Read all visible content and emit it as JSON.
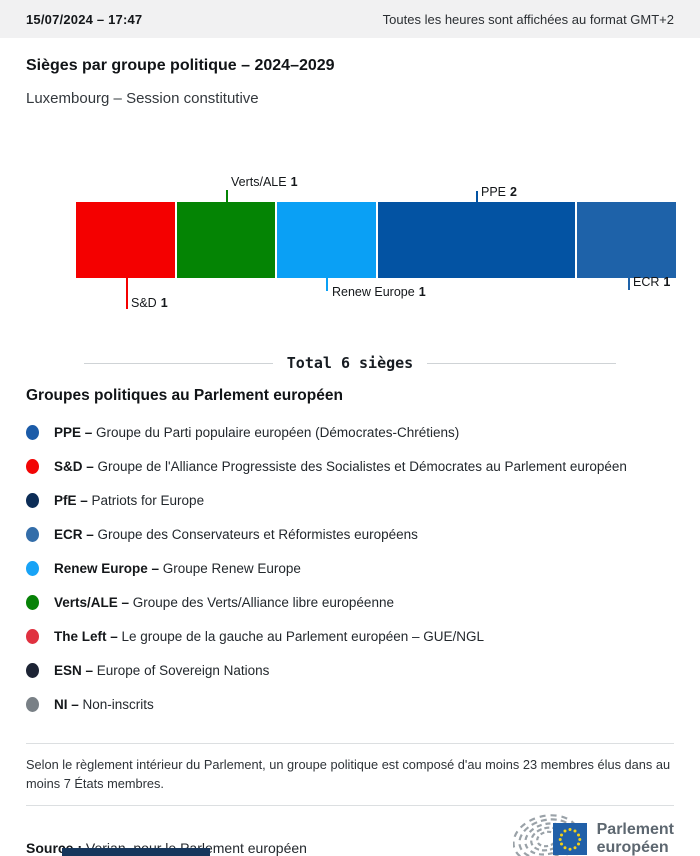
{
  "header": {
    "datetime": "15/07/2024 – 17:47",
    "timezone_notice": "Toutes les heures sont affichées au format GMT+2"
  },
  "title": "Sièges par groupe politique – 2024–2029",
  "subtitle": "Luxembourg – Session constitutive",
  "chart_data": {
    "type": "bar",
    "variant": "horizontal-stacked",
    "title": "Sièges par groupe politique – 2024–2029",
    "total_seats": 6,
    "total_label": "Total 6 sièges",
    "segments": [
      {
        "name": "S&D",
        "seats": 1,
        "color": "#f40000",
        "callout": "below"
      },
      {
        "name": "Verts/ALE",
        "seats": 1,
        "color": "#048404",
        "callout": "above"
      },
      {
        "name": "Renew Europe",
        "seats": 1,
        "color": "#0aa0f5",
        "callout": "below"
      },
      {
        "name": "PPE",
        "seats": 2,
        "color": "#0353a3",
        "callout": "above"
      },
      {
        "name": "ECR",
        "seats": 1,
        "color": "#1e62a9",
        "callout": "below"
      }
    ]
  },
  "legend": {
    "heading": "Groupes politiques au Parlement européen",
    "items": [
      {
        "label": "PPE –",
        "desc": "Groupe du Parti populaire européen (Démocrates-Chrétiens)",
        "color": "#1b5ba8"
      },
      {
        "label": "S&D –",
        "desc": "Groupe de l'Alliance Progressiste des Socialistes et Démocrates au Parlement européen",
        "color": "#f20505"
      },
      {
        "label": "PfE –",
        "desc": "Patriots for Europe",
        "color": "#0c2d57"
      },
      {
        "label": "ECR –",
        "desc": "Groupe des Conservateurs et Réformistes européens",
        "color": "#336da9"
      },
      {
        "label": "Renew Europe –",
        "desc": "Groupe Renew Europe",
        "color": "#18a3f6"
      },
      {
        "label": "Verts/ALE –",
        "desc": "Groupe des Verts/Alliance libre européenne",
        "color": "#078207"
      },
      {
        "label": "The Left –",
        "desc": "Le groupe de la gauche au Parlement européen – GUE/NGL",
        "color": "#e03140"
      },
      {
        "label": "ESN –",
        "desc": "Europe of Sovereign Nations",
        "color": "#1d2435"
      },
      {
        "label": "NI –",
        "desc": "Non-inscrits",
        "color": "#798086"
      }
    ]
  },
  "footnote": "Selon le règlement intérieur du Parlement, un groupe politique est composé d'au moins 23 membres élus dans au moins 7 États membres.",
  "source": {
    "label": "Source :",
    "text": "Verian, pour le Parlement européen"
  },
  "logo": {
    "line1": "Parlement",
    "line2": "européen",
    "flag_color": "#2160a8",
    "star_color": "#f5d118",
    "arc_color": "#9aa2a8"
  }
}
